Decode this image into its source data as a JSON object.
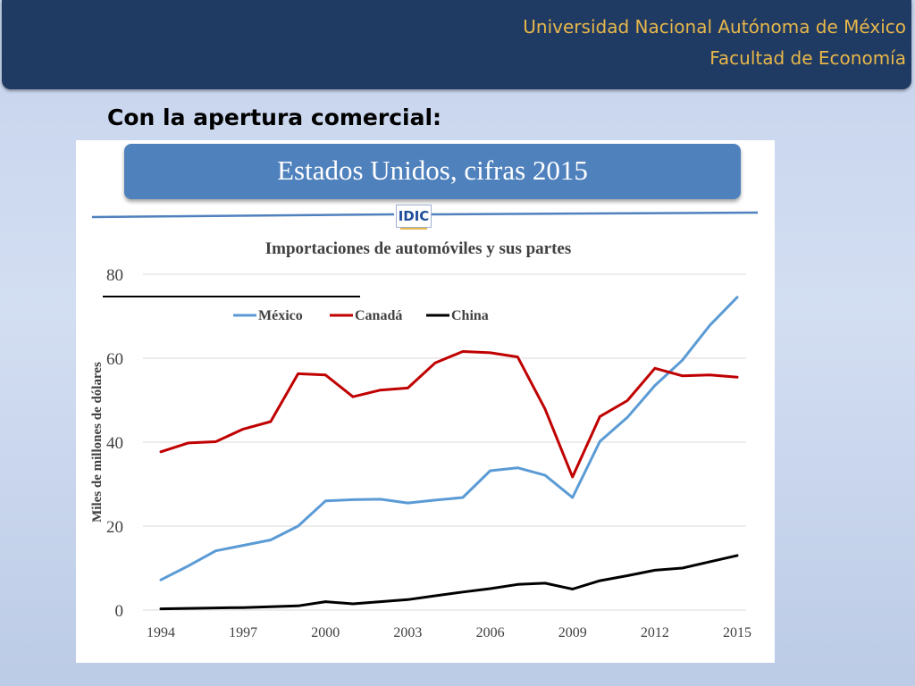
{
  "header": {
    "line1": "Universidad Nacional Autónoma de México",
    "line2": "Facultad de Economía"
  },
  "slide_title": "Con la apertura comercial:",
  "banner_title": "Estados Unidos, cifras 2015",
  "logo_text": "IDIC",
  "colors": {
    "header_bg": "#1f3a63",
    "header_text": "#e8b74a",
    "banner_bg": "#4f81bd",
    "mexico": "#5b9bd5",
    "canada": "#c00000",
    "china": "#000000"
  },
  "chart_data": {
    "type": "line",
    "title": "Importaciones de automóviles y sus partes",
    "xlabel": "",
    "ylabel": "Miles de millones de dólares",
    "ylim": [
      0,
      80
    ],
    "yticks": [
      0,
      20,
      40,
      60,
      80
    ],
    "xticks": [
      1994,
      1997,
      2000,
      2003,
      2006,
      2009,
      2012,
      2015
    ],
    "x": [
      1994,
      1995,
      1996,
      1997,
      1998,
      1999,
      2000,
      2001,
      2002,
      2003,
      2004,
      2005,
      2006,
      2007,
      2008,
      2009,
      2010,
      2011,
      2012,
      2013,
      2014,
      2015
    ],
    "legend_position": "top-left",
    "grid": "horizontal",
    "series": [
      {
        "name": "México",
        "color": "#5b9bd5",
        "values": [
          7.2,
          10.5,
          14.1,
          15.4,
          16.7,
          20.0,
          26.0,
          26.3,
          26.4,
          25.5,
          26.2,
          26.8,
          33.2,
          33.9,
          32.1,
          26.8,
          40.2,
          45.9,
          53.5,
          59.5,
          67.8,
          74.5
        ]
      },
      {
        "name": "Canadá",
        "color": "#c00000",
        "values": [
          37.7,
          39.8,
          40.1,
          43.1,
          44.9,
          56.3,
          56.0,
          50.8,
          52.4,
          52.9,
          58.9,
          61.6,
          61.3,
          60.3,
          47.9,
          31.7,
          46.1,
          49.9,
          57.6,
          55.8,
          56.0,
          55.5
        ]
      },
      {
        "name": "China",
        "color": "#000000",
        "values": [
          0.3,
          0.4,
          0.5,
          0.6,
          0.8,
          1.0,
          2.0,
          1.5,
          2.0,
          2.5,
          3.4,
          4.3,
          5.1,
          6.1,
          6.4,
          5.0,
          7.0,
          8.2,
          9.5,
          10.0,
          11.5,
          13.0
        ]
      }
    ]
  }
}
